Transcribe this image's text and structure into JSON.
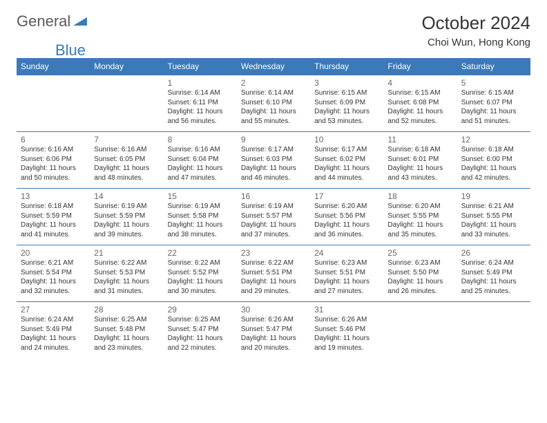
{
  "logo": {
    "part1": "General",
    "part2": "Blue"
  },
  "title": "October 2024",
  "location": "Choi Wun, Hong Kong",
  "colors": {
    "header_bg": "#3a7ab8",
    "header_text": "#ffffff",
    "body_text": "#333333",
    "logo_gray": "#5a5a5a",
    "logo_blue": "#3a7ab8",
    "border": "#3a7ab8"
  },
  "day_names": [
    "Sunday",
    "Monday",
    "Tuesday",
    "Wednesday",
    "Thursday",
    "Friday",
    "Saturday"
  ],
  "weeks": [
    [
      null,
      null,
      {
        "n": "1",
        "sr": "Sunrise: 6:14 AM",
        "ss": "Sunset: 6:11 PM",
        "dl": "Daylight: 11 hours and 56 minutes."
      },
      {
        "n": "2",
        "sr": "Sunrise: 6:14 AM",
        "ss": "Sunset: 6:10 PM",
        "dl": "Daylight: 11 hours and 55 minutes."
      },
      {
        "n": "3",
        "sr": "Sunrise: 6:15 AM",
        "ss": "Sunset: 6:09 PM",
        "dl": "Daylight: 11 hours and 53 minutes."
      },
      {
        "n": "4",
        "sr": "Sunrise: 6:15 AM",
        "ss": "Sunset: 6:08 PM",
        "dl": "Daylight: 11 hours and 52 minutes."
      },
      {
        "n": "5",
        "sr": "Sunrise: 6:15 AM",
        "ss": "Sunset: 6:07 PM",
        "dl": "Daylight: 11 hours and 51 minutes."
      }
    ],
    [
      {
        "n": "6",
        "sr": "Sunrise: 6:16 AM",
        "ss": "Sunset: 6:06 PM",
        "dl": "Daylight: 11 hours and 50 minutes."
      },
      {
        "n": "7",
        "sr": "Sunrise: 6:16 AM",
        "ss": "Sunset: 6:05 PM",
        "dl": "Daylight: 11 hours and 48 minutes."
      },
      {
        "n": "8",
        "sr": "Sunrise: 6:16 AM",
        "ss": "Sunset: 6:04 PM",
        "dl": "Daylight: 11 hours and 47 minutes."
      },
      {
        "n": "9",
        "sr": "Sunrise: 6:17 AM",
        "ss": "Sunset: 6:03 PM",
        "dl": "Daylight: 11 hours and 46 minutes."
      },
      {
        "n": "10",
        "sr": "Sunrise: 6:17 AM",
        "ss": "Sunset: 6:02 PM",
        "dl": "Daylight: 11 hours and 44 minutes."
      },
      {
        "n": "11",
        "sr": "Sunrise: 6:18 AM",
        "ss": "Sunset: 6:01 PM",
        "dl": "Daylight: 11 hours and 43 minutes."
      },
      {
        "n": "12",
        "sr": "Sunrise: 6:18 AM",
        "ss": "Sunset: 6:00 PM",
        "dl": "Daylight: 11 hours and 42 minutes."
      }
    ],
    [
      {
        "n": "13",
        "sr": "Sunrise: 6:18 AM",
        "ss": "Sunset: 5:59 PM",
        "dl": "Daylight: 11 hours and 41 minutes."
      },
      {
        "n": "14",
        "sr": "Sunrise: 6:19 AM",
        "ss": "Sunset: 5:59 PM",
        "dl": "Daylight: 11 hours and 39 minutes."
      },
      {
        "n": "15",
        "sr": "Sunrise: 6:19 AM",
        "ss": "Sunset: 5:58 PM",
        "dl": "Daylight: 11 hours and 38 minutes."
      },
      {
        "n": "16",
        "sr": "Sunrise: 6:19 AM",
        "ss": "Sunset: 5:57 PM",
        "dl": "Daylight: 11 hours and 37 minutes."
      },
      {
        "n": "17",
        "sr": "Sunrise: 6:20 AM",
        "ss": "Sunset: 5:56 PM",
        "dl": "Daylight: 11 hours and 36 minutes."
      },
      {
        "n": "18",
        "sr": "Sunrise: 6:20 AM",
        "ss": "Sunset: 5:55 PM",
        "dl": "Daylight: 11 hours and 35 minutes."
      },
      {
        "n": "19",
        "sr": "Sunrise: 6:21 AM",
        "ss": "Sunset: 5:55 PM",
        "dl": "Daylight: 11 hours and 33 minutes."
      }
    ],
    [
      {
        "n": "20",
        "sr": "Sunrise: 6:21 AM",
        "ss": "Sunset: 5:54 PM",
        "dl": "Daylight: 11 hours and 32 minutes."
      },
      {
        "n": "21",
        "sr": "Sunrise: 6:22 AM",
        "ss": "Sunset: 5:53 PM",
        "dl": "Daylight: 11 hours and 31 minutes."
      },
      {
        "n": "22",
        "sr": "Sunrise: 6:22 AM",
        "ss": "Sunset: 5:52 PM",
        "dl": "Daylight: 11 hours and 30 minutes."
      },
      {
        "n": "23",
        "sr": "Sunrise: 6:22 AM",
        "ss": "Sunset: 5:51 PM",
        "dl": "Daylight: 11 hours and 29 minutes."
      },
      {
        "n": "24",
        "sr": "Sunrise: 6:23 AM",
        "ss": "Sunset: 5:51 PM",
        "dl": "Daylight: 11 hours and 27 minutes."
      },
      {
        "n": "25",
        "sr": "Sunrise: 6:23 AM",
        "ss": "Sunset: 5:50 PM",
        "dl": "Daylight: 11 hours and 26 minutes."
      },
      {
        "n": "26",
        "sr": "Sunrise: 6:24 AM",
        "ss": "Sunset: 5:49 PM",
        "dl": "Daylight: 11 hours and 25 minutes."
      }
    ],
    [
      {
        "n": "27",
        "sr": "Sunrise: 6:24 AM",
        "ss": "Sunset: 5:49 PM",
        "dl": "Daylight: 11 hours and 24 minutes."
      },
      {
        "n": "28",
        "sr": "Sunrise: 6:25 AM",
        "ss": "Sunset: 5:48 PM",
        "dl": "Daylight: 11 hours and 23 minutes."
      },
      {
        "n": "29",
        "sr": "Sunrise: 6:25 AM",
        "ss": "Sunset: 5:47 PM",
        "dl": "Daylight: 11 hours and 22 minutes."
      },
      {
        "n": "30",
        "sr": "Sunrise: 6:26 AM",
        "ss": "Sunset: 5:47 PM",
        "dl": "Daylight: 11 hours and 20 minutes."
      },
      {
        "n": "31",
        "sr": "Sunrise: 6:26 AM",
        "ss": "Sunset: 5:46 PM",
        "dl": "Daylight: 11 hours and 19 minutes."
      },
      null,
      null
    ]
  ]
}
